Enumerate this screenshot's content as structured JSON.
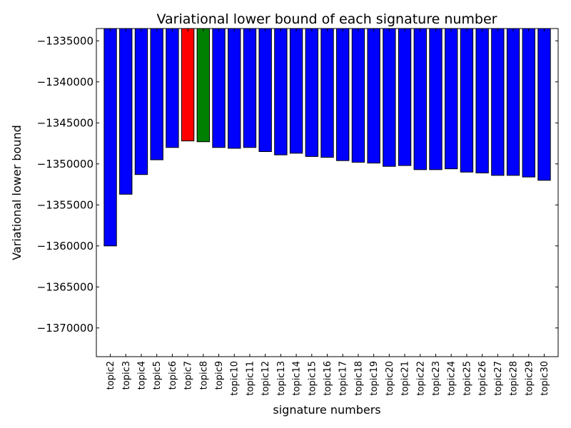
{
  "chart_data": {
    "type": "bar",
    "title": "Variational lower bound of each signature number",
    "xlabel": "signature numbers",
    "ylabel": "Variational lower bound",
    "ylim": [
      -1373500,
      -1333500
    ],
    "yticks": [
      -1370000,
      -1365000,
      -1360000,
      -1355000,
      -1350000,
      -1345000,
      -1340000,
      -1335000
    ],
    "ytick_labels": [
      "−1370000",
      "−1365000",
      "−1360000",
      "−1355000",
      "−1350000",
      "−1345000",
      "−1340000",
      "−1335000"
    ],
    "categories": [
      "topic2",
      "topic3",
      "topic4",
      "topic5",
      "topic6",
      "topic7",
      "topic8",
      "topic9",
      "topic10",
      "topic11",
      "topic12",
      "topic13",
      "topic14",
      "topic15",
      "topic16",
      "topic17",
      "topic18",
      "topic19",
      "topic20",
      "topic21",
      "topic22",
      "topic23",
      "topic24",
      "topic25",
      "topic26",
      "topic27",
      "topic28",
      "topic29",
      "topic30"
    ],
    "values": [
      -1360000,
      -1353700,
      -1351300,
      -1349500,
      -1348000,
      -1347200,
      -1347300,
      -1348000,
      -1348100,
      -1348000,
      -1348500,
      -1348900,
      -1348700,
      -1349100,
      -1349200,
      -1349600,
      -1349800,
      -1349900,
      -1350300,
      -1350200,
      -1350700,
      -1350700,
      -1350600,
      -1351000,
      -1351100,
      -1351400,
      -1351400,
      -1351600,
      -1352000
    ],
    "colors": [
      "#0000ff",
      "#0000ff",
      "#0000ff",
      "#0000ff",
      "#0000ff",
      "#ff0000",
      "#008000",
      "#0000ff",
      "#0000ff",
      "#0000ff",
      "#0000ff",
      "#0000ff",
      "#0000ff",
      "#0000ff",
      "#0000ff",
      "#0000ff",
      "#0000ff",
      "#0000ff",
      "#0000ff",
      "#0000ff",
      "#0000ff",
      "#0000ff",
      "#0000ff",
      "#0000ff",
      "#0000ff",
      "#0000ff",
      "#0000ff",
      "#0000ff",
      "#0000ff"
    ],
    "grid": false,
    "legend": "none"
  }
}
